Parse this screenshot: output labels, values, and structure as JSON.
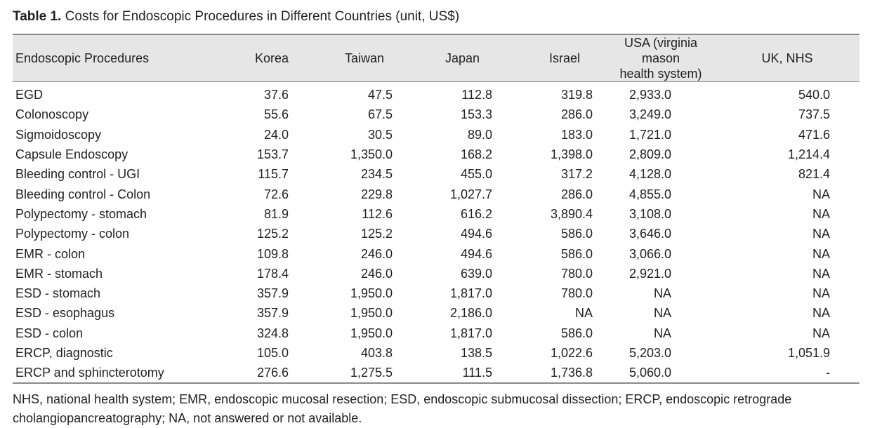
{
  "caption": {
    "label": "Table 1.",
    "text": "Costs for Endoscopic Procedures in Different Countries (unit, US$)"
  },
  "table": {
    "headers": {
      "procedures": "Endoscopic Procedures",
      "korea": "Korea",
      "taiwan": "Taiwan",
      "japan": "Japan",
      "israel": "Israel",
      "usa_line1": "USA (virginia mason",
      "usa_line2": "health system)",
      "uk": "UK, NHS"
    },
    "rows": [
      [
        "EGD",
        "37.6",
        "47.5",
        "112.8",
        "319.8",
        "2,933.0",
        "540.0"
      ],
      [
        "Colonoscopy",
        "55.6",
        "67.5",
        "153.3",
        "286.0",
        "3,249.0",
        "737.5"
      ],
      [
        "Sigmoidoscopy",
        "24.0",
        "30.5",
        "89.0",
        "183.0",
        "1,721.0",
        "471.6"
      ],
      [
        "Capsule Endoscopy",
        "153.7",
        "1,350.0",
        "168.2",
        "1,398.0",
        "2,809.0",
        "1,214.4"
      ],
      [
        "Bleeding control - UGI",
        "115.7",
        "234.5",
        "455.0",
        "317.2",
        "4,128.0",
        "821.4"
      ],
      [
        "Bleeding control - Colon",
        "72.6",
        "229.8",
        "1,027.7",
        "286.0",
        "4,855.0",
        "NA"
      ],
      [
        "Polypectomy - stomach",
        "81.9",
        "112.6",
        "616.2",
        "3,890.4",
        "3,108.0",
        "NA"
      ],
      [
        "Polypectomy - colon",
        "125.2",
        "125.2",
        "494.6",
        "586.0",
        "3,646.0",
        "NA"
      ],
      [
        "EMR - colon",
        "109.8",
        "246.0",
        "494.6",
        "586.0",
        "3,066.0",
        "NA"
      ],
      [
        "EMR - stomach",
        "178.4",
        "246.0",
        "639.0",
        "780.0",
        "2,921.0",
        "NA"
      ],
      [
        "ESD - stomach",
        "357.9",
        "1,950.0",
        "1,817.0",
        "780.0",
        "NA",
        "NA"
      ],
      [
        "ESD - esophagus",
        "357.9",
        "1,950.0",
        "2,186.0",
        "NA",
        "NA",
        "NA"
      ],
      [
        "ESD - colon",
        "324.8",
        "1,950.0",
        "1,817.0",
        "586.0",
        "NA",
        "NA"
      ],
      [
        "ERCP, diagnostic",
        "105.0",
        "403.8",
        "138.5",
        "1,022.6",
        "5,203.0",
        "1,051.9"
      ],
      [
        "ERCP and sphincterotomy",
        "276.6",
        "1,275.5",
        "111.5",
        "1,736.8",
        "5,060.0",
        "-"
      ]
    ]
  },
  "footnote": "NHS, national health system; EMR, endoscopic mucosal resection; ESD, endoscopic submucosal dissection; ERCP, endoscopic retrograde cholangiopancreatography; NA, not answered or not available."
}
